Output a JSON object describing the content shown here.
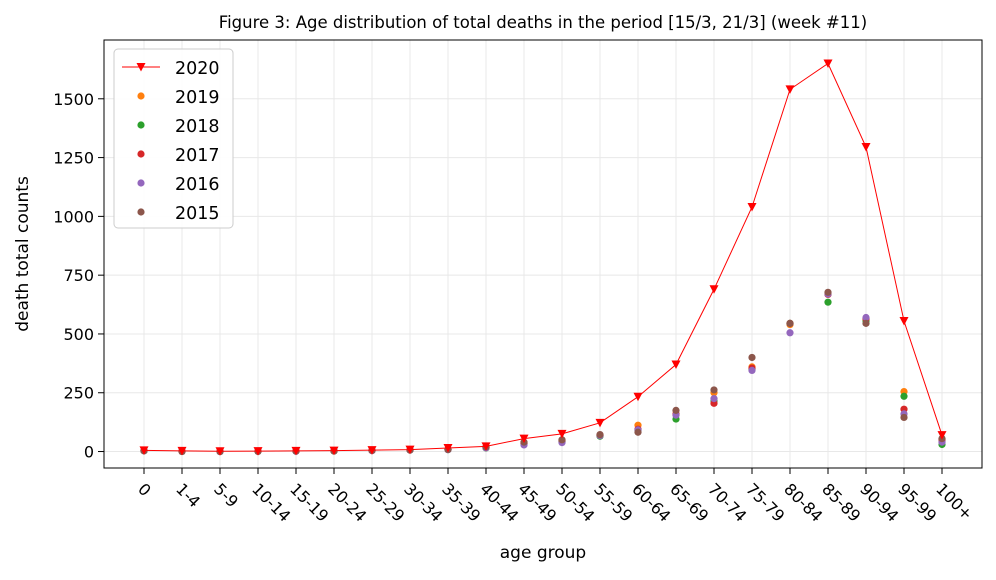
{
  "chart_data": {
    "type": "line",
    "title": "Figure 3: Age distribution of total deaths in the period [15/3, 21/3] (week #11)",
    "xlabel": "age group",
    "ylabel": "death total counts",
    "categories": [
      "0",
      "1-4",
      "5-9",
      "10-14",
      "15-19",
      "20-24",
      "25-29",
      "30-34",
      "35-39",
      "40-44",
      "45-49",
      "50-54",
      "55-59",
      "60-64",
      "65-69",
      "70-74",
      "75-79",
      "80-84",
      "85-89",
      "90-94",
      "95-99",
      "100+"
    ],
    "ylim": [
      -70,
      1750
    ],
    "yticks": [
      0,
      250,
      500,
      750,
      1000,
      1250,
      1500
    ],
    "grid": true,
    "legend_position": "top-left",
    "series": [
      {
        "name": "2020",
        "style": "line-triangle",
        "color": "#ff0000",
        "values": [
          5,
          3,
          1,
          2,
          3,
          4,
          6,
          8,
          15,
          22,
          55,
          75,
          122,
          233,
          370,
          690,
          1040,
          1540,
          1650,
          1295,
          555,
          70
        ]
      },
      {
        "name": "2019",
        "style": "dot",
        "color": "#ff7f0e",
        "values": [
          4,
          1,
          1,
          1,
          2,
          3,
          4,
          6,
          10,
          18,
          33,
          48,
          68,
          112,
          158,
          250,
          360,
          540,
          670,
          560,
          255,
          45
        ]
      },
      {
        "name": "2018",
        "style": "dot",
        "color": "#2ca02c",
        "values": [
          3,
          2,
          1,
          1,
          2,
          2,
          5,
          6,
          8,
          15,
          32,
          42,
          65,
          90,
          138,
          215,
          350,
          545,
          635,
          555,
          235,
          30
        ]
      },
      {
        "name": "2017",
        "style": "dot",
        "color": "#d62728",
        "values": [
          4,
          1,
          0,
          1,
          2,
          3,
          4,
          7,
          9,
          17,
          35,
          45,
          70,
          95,
          160,
          205,
          355,
          545,
          668,
          565,
          180,
          50
        ]
      },
      {
        "name": "2016",
        "style": "dot",
        "color": "#9467bd",
        "values": [
          3,
          1,
          0,
          1,
          1,
          3,
          4,
          6,
          8,
          16,
          28,
          38,
          68,
          92,
          155,
          225,
          345,
          505,
          670,
          570,
          160,
          40
        ]
      },
      {
        "name": "2015",
        "style": "dot",
        "color": "#8c564b",
        "values": [
          3,
          0,
          0,
          1,
          2,
          2,
          5,
          7,
          9,
          20,
          40,
          50,
          72,
          82,
          175,
          262,
          400,
          545,
          677,
          545,
          145,
          55
        ]
      }
    ]
  }
}
